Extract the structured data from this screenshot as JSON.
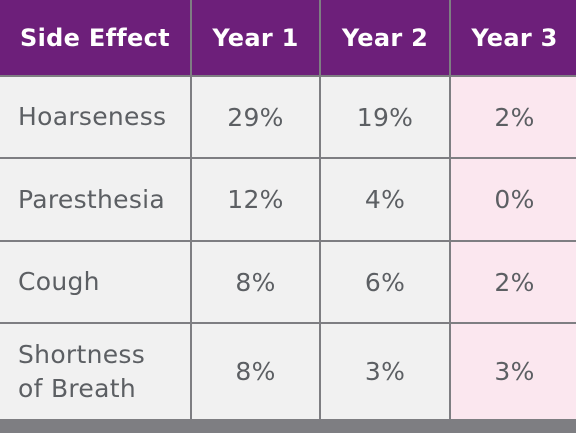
{
  "table": {
    "headers": [
      "Side Effect",
      "Year 1",
      "Year 2",
      "Year 3"
    ],
    "rows": [
      {
        "effect": "Hoarseness",
        "year1": "29%",
        "year2": "19%",
        "year3": "2%"
      },
      {
        "effect": "Paresthesia",
        "year1": "12%",
        "year2": "4%",
        "year3": "0%"
      },
      {
        "effect": "Cough",
        "year1": "8%",
        "year2": "6%",
        "year3": "2%"
      },
      {
        "effect_line1": "Shortness",
        "effect_line2": "of Breath",
        "year1": "8%",
        "year2": "3%",
        "year3": "3%"
      }
    ]
  },
  "colors": {
    "header_bg": "#6d1f7a",
    "header_text": "#ffffff",
    "cell_bg": "#f1f1f1",
    "highlight_bg": "#fbe7ef",
    "grid_line": "#7e7e82",
    "cell_text": "#5c5f63"
  }
}
